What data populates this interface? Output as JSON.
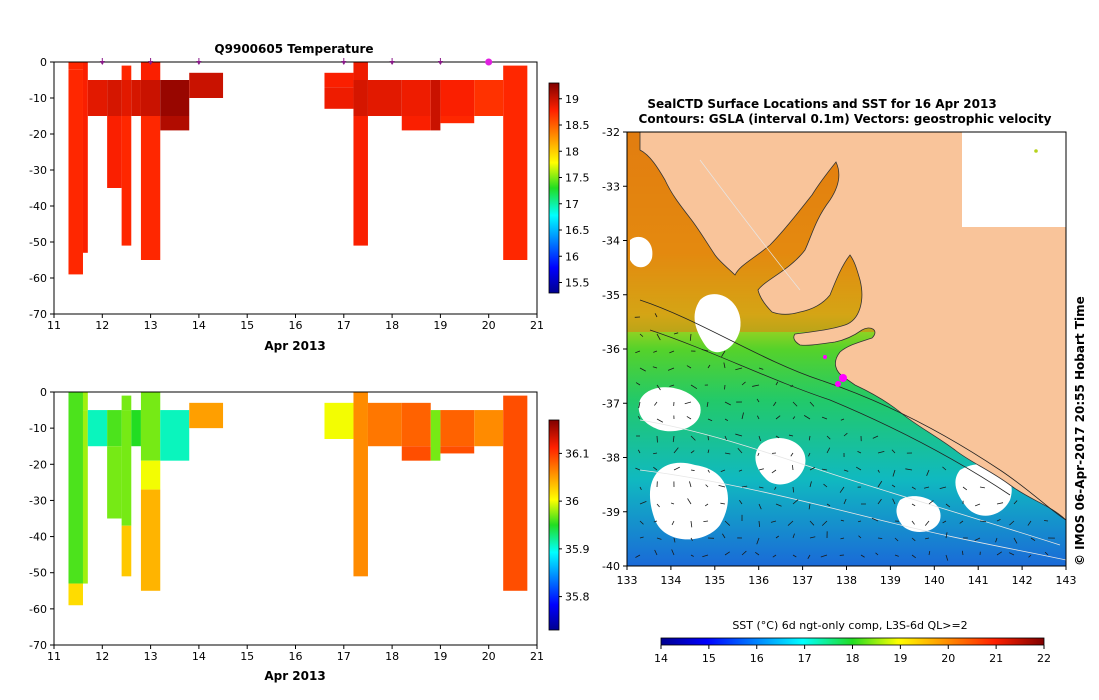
{
  "chart_data": [
    {
      "type": "heatmap",
      "title": "Q9900605  Temperature",
      "xlabel": "Apr 2013",
      "ylabel": "",
      "xlim": [
        11,
        21
      ],
      "ylim": [
        -70,
        0
      ],
      "xticks": [
        "11",
        "12",
        "13",
        "14",
        "15",
        "16",
        "17",
        "18",
        "19",
        "20",
        "21"
      ],
      "yticks": [
        "0",
        "-10",
        "-20",
        "-30",
        "-40",
        "-50",
        "-60",
        "-70"
      ],
      "profile_markers_day": [
        12.0,
        13.0,
        14.0,
        17.0,
        18.0,
        19.0
      ],
      "current_marker_day": 20.0,
      "colorbar": {
        "min": 15.3,
        "max": 19.3,
        "ticks": [
          "15.5",
          "16",
          "16.5",
          "17",
          "17.5",
          "18",
          "18.5",
          "19"
        ]
      },
      "profiles": [
        {
          "t0": 11.3,
          "t1": 11.6,
          "depth": 59,
          "layers": [
            {
              "top": 0,
              "bot": 2,
              "v": 18.75
            },
            {
              "top": 2,
              "bot": 59,
              "v": 18.75
            }
          ]
        },
        {
          "t0": 11.6,
          "t1": 11.7,
          "depth": 53,
          "layers": [
            {
              "top": 0,
              "bot": 5,
              "v": 18.8
            },
            {
              "top": 5,
              "bot": 53,
              "v": 18.8
            }
          ]
        },
        {
          "t0": 11.7,
          "t1": 12.1,
          "depth": 15,
          "layers": [
            {
              "top": 5,
              "bot": 15,
              "v": 18.9
            }
          ]
        },
        {
          "t0": 12.1,
          "t1": 12.4,
          "depth": 35,
          "layers": [
            {
              "top": 5,
              "bot": 15,
              "v": 18.95
            },
            {
              "top": 15,
              "bot": 35,
              "v": 18.8
            }
          ]
        },
        {
          "t0": 12.4,
          "t1": 12.6,
          "depth": 51,
          "layers": [
            {
              "top": 1,
              "bot": 5,
              "v": 18.75
            },
            {
              "top": 5,
              "bot": 15,
              "v": 18.9
            },
            {
              "top": 15,
              "bot": 51,
              "v": 18.75
            }
          ]
        },
        {
          "t0": 12.6,
          "t1": 12.8,
          "depth": 15,
          "layers": [
            {
              "top": 5,
              "bot": 15,
              "v": 18.95
            }
          ]
        },
        {
          "t0": 12.8,
          "t1": 13.2,
          "depth": 55,
          "layers": [
            {
              "top": 0,
              "bot": 5,
              "v": 18.8
            },
            {
              "top": 5,
              "bot": 15,
              "v": 19.0
            },
            {
              "top": 15,
              "bot": 55,
              "v": 18.75
            }
          ]
        },
        {
          "t0": 13.2,
          "t1": 13.8,
          "depth": 19,
          "layers": [
            {
              "top": 5,
              "bot": 15,
              "v": 19.2
            },
            {
              "top": 15,
              "bot": 19,
              "v": 19.1
            }
          ]
        },
        {
          "t0": 13.8,
          "t1": 14.5,
          "depth": 10,
          "layers": [
            {
              "top": 3,
              "bot": 10,
              "v": 19.0
            }
          ]
        },
        {
          "t0": 16.6,
          "t1": 17.2,
          "depth": 13,
          "layers": [
            {
              "top": 3,
              "bot": 7,
              "v": 18.8
            },
            {
              "top": 7,
              "bot": 13,
              "v": 18.85
            }
          ]
        },
        {
          "t0": 17.2,
          "t1": 17.5,
          "depth": 51,
          "layers": [
            {
              "top": 0,
              "bot": 5,
              "v": 18.85
            },
            {
              "top": 5,
              "bot": 15,
              "v": 18.95
            },
            {
              "top": 15,
              "bot": 51,
              "v": 18.8
            }
          ]
        },
        {
          "t0": 17.5,
          "t1": 18.2,
          "depth": 15,
          "layers": [
            {
              "top": 5,
              "bot": 15,
              "v": 18.9
            }
          ]
        },
        {
          "t0": 18.2,
          "t1": 18.8,
          "depth": 19,
          "layers": [
            {
              "top": 5,
              "bot": 15,
              "v": 18.85
            },
            {
              "top": 15,
              "bot": 19,
              "v": 18.8
            }
          ]
        },
        {
          "t0": 18.8,
          "t1": 19.0,
          "depth": 19,
          "layers": [
            {
              "top": 5,
              "bot": 19,
              "v": 19.0
            }
          ]
        },
        {
          "t0": 19.0,
          "t1": 19.7,
          "depth": 17,
          "layers": [
            {
              "top": 5,
              "bot": 15,
              "v": 18.8
            },
            {
              "top": 15,
              "bot": 17,
              "v": 18.75
            }
          ]
        },
        {
          "t0": 19.7,
          "t1": 20.3,
          "depth": 15,
          "layers": [
            {
              "top": 5,
              "bot": 15,
              "v": 18.7
            }
          ]
        },
        {
          "t0": 20.3,
          "t1": 20.8,
          "depth": 55,
          "layers": [
            {
              "top": 1,
              "bot": 55,
              "v": 18.75
            }
          ]
        }
      ]
    },
    {
      "type": "heatmap",
      "title": "",
      "xlabel": "Apr 2013",
      "ylabel": "",
      "xlim": [
        11,
        21
      ],
      "ylim": [
        -70,
        0
      ],
      "xticks": [
        "11",
        "12",
        "13",
        "14",
        "15",
        "16",
        "17",
        "18",
        "19",
        "20",
        "21"
      ],
      "yticks": [
        "0",
        "-10",
        "-20",
        "-30",
        "-40",
        "-50",
        "-60",
        "-70"
      ],
      "colorbar": {
        "min": 35.73,
        "max": 36.17,
        "ticks": [
          "35.8",
          "35.9",
          "36",
          "36.1"
        ]
      },
      "profiles": [
        {
          "t0": 11.3,
          "t1": 11.6,
          "depth": 59,
          "layers": [
            {
              "top": 0,
              "bot": 53,
              "v": 35.96
            },
            {
              "top": 53,
              "bot": 59,
              "v": 36.02
            }
          ]
        },
        {
          "t0": 11.6,
          "t1": 11.7,
          "depth": 53,
          "layers": [
            {
              "top": 0,
              "bot": 5,
              "v": 35.98
            },
            {
              "top": 5,
              "bot": 53,
              "v": 35.98
            }
          ]
        },
        {
          "t0": 11.7,
          "t1": 12.1,
          "depth": 15,
          "layers": [
            {
              "top": 5,
              "bot": 15,
              "v": 35.91
            }
          ]
        },
        {
          "t0": 12.1,
          "t1": 12.4,
          "depth": 35,
          "layers": [
            {
              "top": 5,
              "bot": 15,
              "v": 35.96
            },
            {
              "top": 15,
              "bot": 35,
              "v": 35.97
            }
          ]
        },
        {
          "t0": 12.4,
          "t1": 12.6,
          "depth": 51,
          "layers": [
            {
              "top": 1,
              "bot": 5,
              "v": 35.97
            },
            {
              "top": 5,
              "bot": 37,
              "v": 35.97
            },
            {
              "top": 37,
              "bot": 51,
              "v": 36.03
            }
          ]
        },
        {
          "t0": 12.6,
          "t1": 12.8,
          "depth": 15,
          "layers": [
            {
              "top": 5,
              "bot": 15,
              "v": 35.95
            }
          ]
        },
        {
          "t0": 12.8,
          "t1": 13.2,
          "depth": 55,
          "layers": [
            {
              "top": 0,
              "bot": 19,
              "v": 35.97
            },
            {
              "top": 19,
              "bot": 27,
              "v": 36.0
            },
            {
              "top": 27,
              "bot": 55,
              "v": 36.04
            }
          ]
        },
        {
          "t0": 13.2,
          "t1": 13.8,
          "depth": 19,
          "layers": [
            {
              "top": 5,
              "bot": 19,
              "v": 35.91
            }
          ]
        },
        {
          "t0": 13.8,
          "t1": 14.5,
          "depth": 10,
          "layers": [
            {
              "top": 3,
              "bot": 10,
              "v": 36.05
            }
          ]
        },
        {
          "t0": 16.6,
          "t1": 17.2,
          "depth": 13,
          "layers": [
            {
              "top": 3,
              "bot": 13,
              "v": 36.0
            }
          ]
        },
        {
          "t0": 17.2,
          "t1": 17.5,
          "depth": 51,
          "layers": [
            {
              "top": 0,
              "bot": 51,
              "v": 36.06
            }
          ]
        },
        {
          "t0": 17.5,
          "t1": 18.2,
          "depth": 15,
          "layers": [
            {
              "top": 3,
              "bot": 15,
              "v": 36.07
            }
          ]
        },
        {
          "t0": 18.2,
          "t1": 18.8,
          "depth": 19,
          "layers": [
            {
              "top": 3,
              "bot": 15,
              "v": 36.08
            },
            {
              "top": 15,
              "bot": 19,
              "v": 36.09
            }
          ]
        },
        {
          "t0": 18.8,
          "t1": 19.0,
          "depth": 19,
          "layers": [
            {
              "top": 5,
              "bot": 19,
              "v": 35.97
            }
          ]
        },
        {
          "t0": 19.0,
          "t1": 19.7,
          "depth": 17,
          "layers": [
            {
              "top": 5,
              "bot": 15,
              "v": 36.08
            },
            {
              "top": 15,
              "bot": 17,
              "v": 36.09
            }
          ]
        },
        {
          "t0": 19.7,
          "t1": 20.3,
          "depth": 15,
          "layers": [
            {
              "top": 5,
              "bot": 15,
              "v": 36.06
            }
          ]
        },
        {
          "t0": 20.3,
          "t1": 20.8,
          "depth": 55,
          "layers": [
            {
              "top": 1,
              "bot": 55,
              "v": 36.09
            }
          ]
        }
      ]
    },
    {
      "type": "heatmap",
      "title": "SealCTD Surface Locations and SST for 16 Apr 2013",
      "subtitle": "Contours: GSLA (interval 0.1m) Vectors: geostrophic velocity",
      "xlabel": "",
      "ylabel": "",
      "xlim": [
        133,
        143
      ],
      "ylim": [
        -40,
        -32
      ],
      "xticks": [
        "133",
        "134",
        "135",
        "136",
        "137",
        "138",
        "139",
        "140",
        "141",
        "142",
        "143"
      ],
      "yticks": [
        "-32",
        "-33",
        "-34",
        "-35",
        "-36",
        "-37",
        "-38",
        "-39",
        "-40"
      ],
      "colorbar": {
        "label": "SST (°C) 6d ngt-only comp, L3S-6d QL>=2",
        "min": 14,
        "max": 22,
        "ticks": [
          "14",
          "15",
          "16",
          "17",
          "18",
          "19",
          "20",
          "21",
          "22"
        ]
      },
      "seal_locations": [
        {
          "lon": 137.8,
          "lat": -36.4
        },
        {
          "lon": 137.9,
          "lat": -36.5
        },
        {
          "lon": 137.5,
          "lat": -36.1
        }
      ],
      "side_caption": "© IMOS 06-Apr-2017 20:55 Hobart Time"
    }
  ]
}
